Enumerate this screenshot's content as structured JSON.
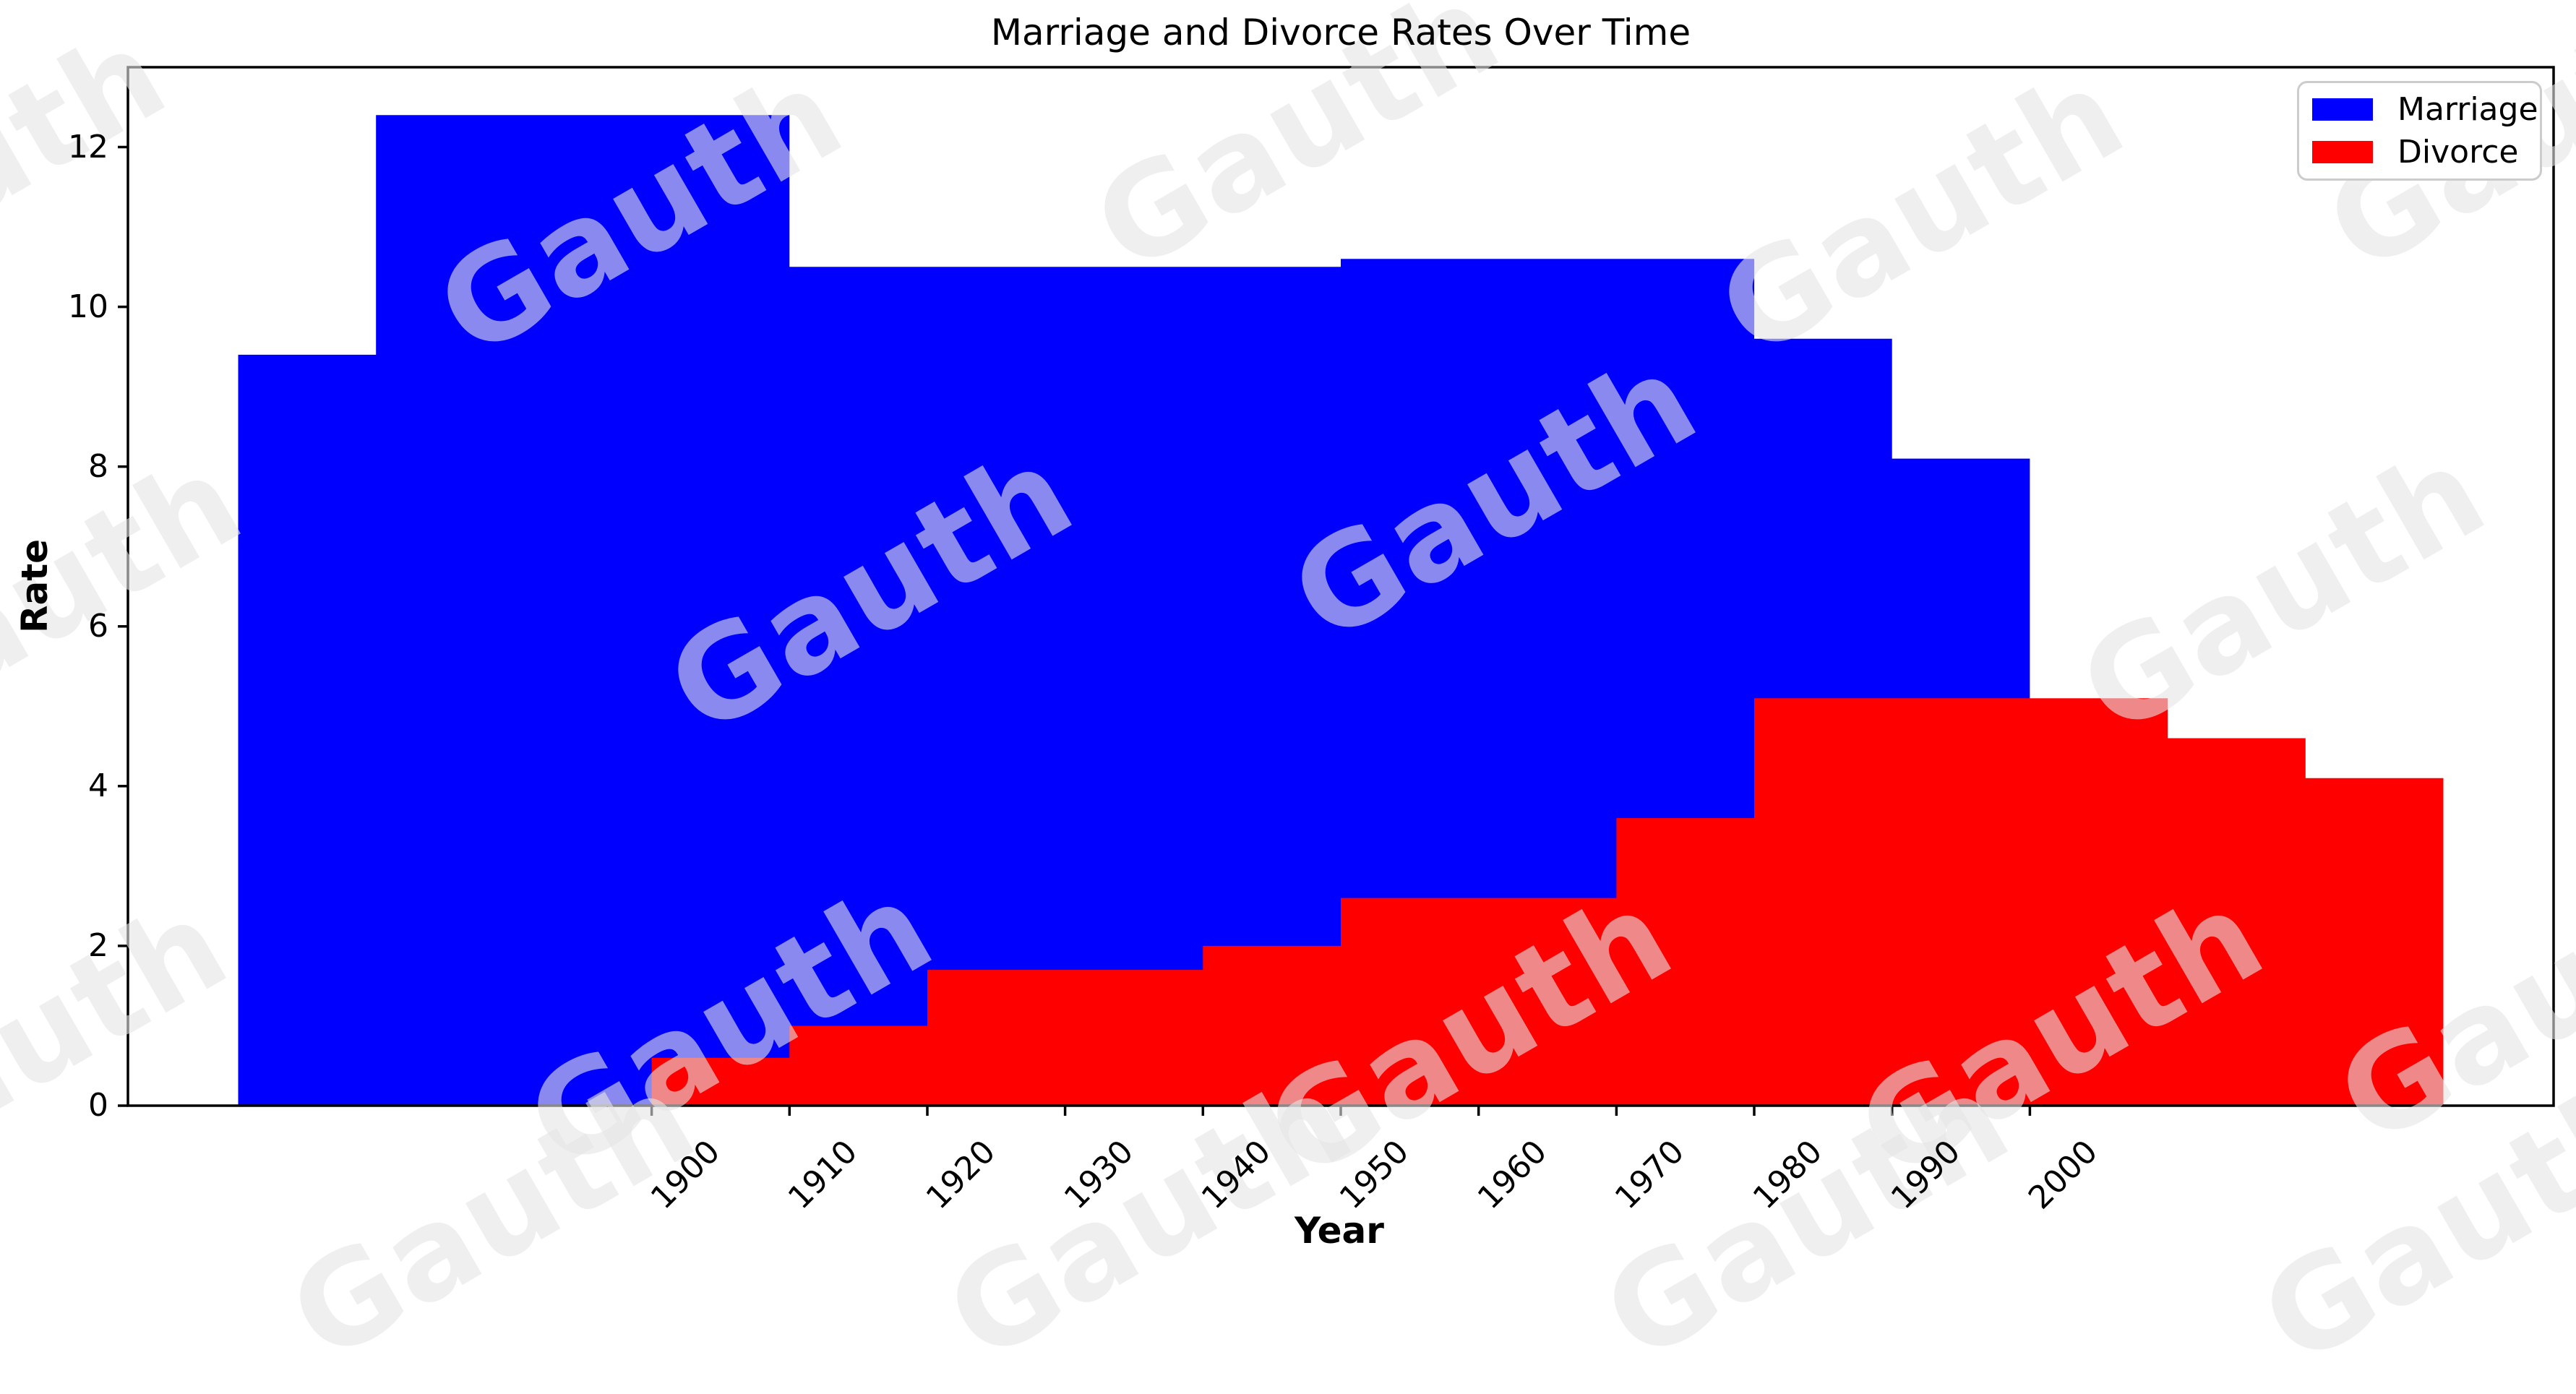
{
  "watermark": {
    "text": "Gauth",
    "color": "#e4e4e4",
    "opacity": 0.6
  },
  "chart_data": {
    "type": "bar",
    "title": "Marriage and Divorce Rates Over Time",
    "xlabel": "Year",
    "ylabel": "Rate",
    "x_ticks": [
      1900,
      1910,
      1920,
      1930,
      1940,
      1950,
      1960,
      1970,
      1980,
      1990,
      2000
    ],
    "y_ticks": [
      0,
      2,
      4,
      6,
      8,
      10,
      12
    ],
    "xlim": [
      1862,
      2038
    ],
    "ylim": [
      0,
      13
    ],
    "grid": false,
    "bar_width_years": 30,
    "background": "#ffffff",
    "legend": {
      "position": "upper right",
      "entries": [
        {
          "label": "Marriage",
          "color": "#0000ff"
        },
        {
          "label": "Divorce",
          "color": "#ff0000"
        }
      ]
    },
    "series": [
      {
        "name": "Marriage",
        "color": "#0000ff",
        "silhouette_segments": [
          {
            "from": 1870,
            "to": 1880,
            "value": 9.4
          },
          {
            "from": 1880,
            "to": 1910,
            "value": 12.4
          },
          {
            "from": 1910,
            "to": 1950,
            "value": 10.5
          },
          {
            "from": 1950,
            "to": 1980,
            "value": 10.6
          },
          {
            "from": 1980,
            "to": 1990,
            "value": 9.6
          },
          {
            "from": 1990,
            "to": 2000,
            "value": 8.1
          }
        ]
      },
      {
        "name": "Divorce",
        "color": "#ff0000",
        "silhouette_segments": [
          {
            "from": 1900,
            "to": 1910,
            "value": 0.6
          },
          {
            "from": 1910,
            "to": 1920,
            "value": 1.0
          },
          {
            "from": 1920,
            "to": 1940,
            "value": 1.7
          },
          {
            "from": 1940,
            "to": 1950,
            "value": 2.0
          },
          {
            "from": 1950,
            "to": 1970,
            "value": 2.6
          },
          {
            "from": 1970,
            "to": 1980,
            "value": 3.6
          },
          {
            "from": 1980,
            "to": 2010,
            "value": 5.1
          },
          {
            "from": 2010,
            "to": 2020,
            "value": 4.6
          },
          {
            "from": 2020,
            "to": 2030,
            "value": 4.1
          }
        ]
      }
    ]
  }
}
